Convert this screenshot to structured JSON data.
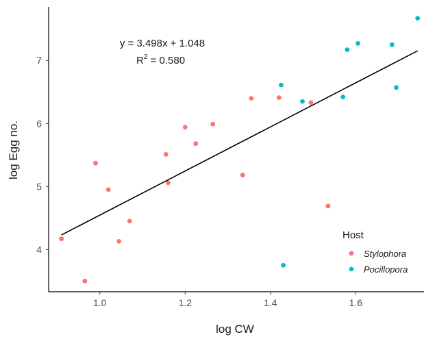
{
  "chart_data": {
    "type": "scatter",
    "xlabel": "log CW",
    "ylabel": "log Egg no.",
    "xlim": [
      0.88,
      1.76
    ],
    "ylim": [
      3.33,
      7.85
    ],
    "xticks": [
      1.0,
      1.2,
      1.4,
      1.6
    ],
    "xtick_labels": [
      "1.0",
      "1.2",
      "1.4",
      "1.6"
    ],
    "yticks": [
      4,
      5,
      6,
      7
    ],
    "ytick_labels": [
      "4",
      "5",
      "6",
      "7"
    ],
    "grid": false,
    "legend": {
      "title": "Host",
      "position": "bottom-right"
    },
    "series": [
      {
        "name": "Stylophora",
        "color": "#F8766D",
        "x": [
          0.91,
          0.965,
          0.99,
          1.02,
          1.045,
          1.07,
          1.155,
          1.16,
          1.2,
          1.225,
          1.265,
          1.335,
          1.355,
          1.42,
          1.495,
          1.535
        ],
        "y": [
          4.17,
          3.5,
          5.37,
          4.95,
          4.13,
          4.45,
          5.51,
          5.06,
          5.94,
          5.68,
          5.99,
          5.18,
          6.4,
          6.41,
          6.33,
          4.69
        ]
      },
      {
        "name": "Pocillopora",
        "color": "#00BFC4",
        "x": [
          1.425,
          1.43,
          1.475,
          1.57,
          1.58,
          1.605,
          1.685,
          1.695,
          1.745
        ],
        "y": [
          6.61,
          3.75,
          6.35,
          6.42,
          7.17,
          7.27,
          7.25,
          6.57,
          7.67
        ]
      }
    ],
    "regression": {
      "slope": 3.498,
      "intercept": 1.048,
      "x_range": [
        0.91,
        1.745
      ],
      "color": "#000000"
    },
    "annotations": {
      "equation": "y = 3.498x + 1.048",
      "r2_label": "R",
      "r2_superscript": "2",
      "r2_value": " = 0.580"
    }
  }
}
